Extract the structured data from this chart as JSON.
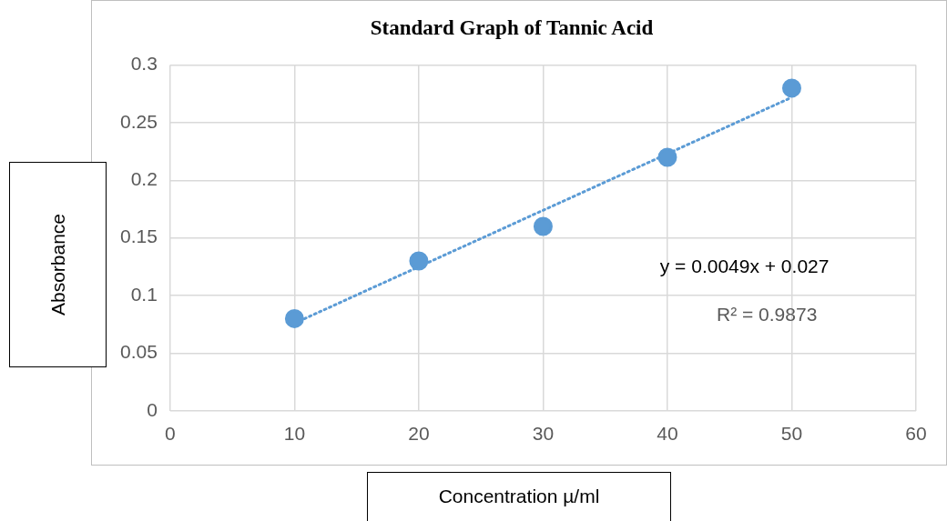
{
  "chart_data": {
    "type": "scatter",
    "title": "Standard Graph of Tannic Acid",
    "xlabel": "Concentration µ/ml",
    "ylabel": "Absorbance",
    "series": [
      {
        "color": "#5b9bd5",
        "x": [
          10,
          20,
          30,
          40,
          50
        ],
        "values": [
          0.08,
          0.13,
          0.16,
          0.22,
          0.28
        ],
        "marker": "circle"
      },
      {
        "type": "line",
        "color": "#5b9bd5",
        "x": [
          10,
          50
        ],
        "values": [
          0.076,
          0.272
        ],
        "marker": "none",
        "line_style": "dotted"
      }
    ],
    "xlim": [
      0,
      60
    ],
    "xticks": [
      0,
      10,
      20,
      30,
      40,
      50,
      60
    ],
    "ylim": [
      0,
      0.3
    ],
    "yticks": [
      0,
      0.05,
      0.1,
      0.15,
      0.2,
      0.25,
      0.3
    ],
    "grid": true,
    "legend": false,
    "annotations": [
      "y = 0.0049x + 0.027",
      "R² = 0.9873"
    ]
  }
}
